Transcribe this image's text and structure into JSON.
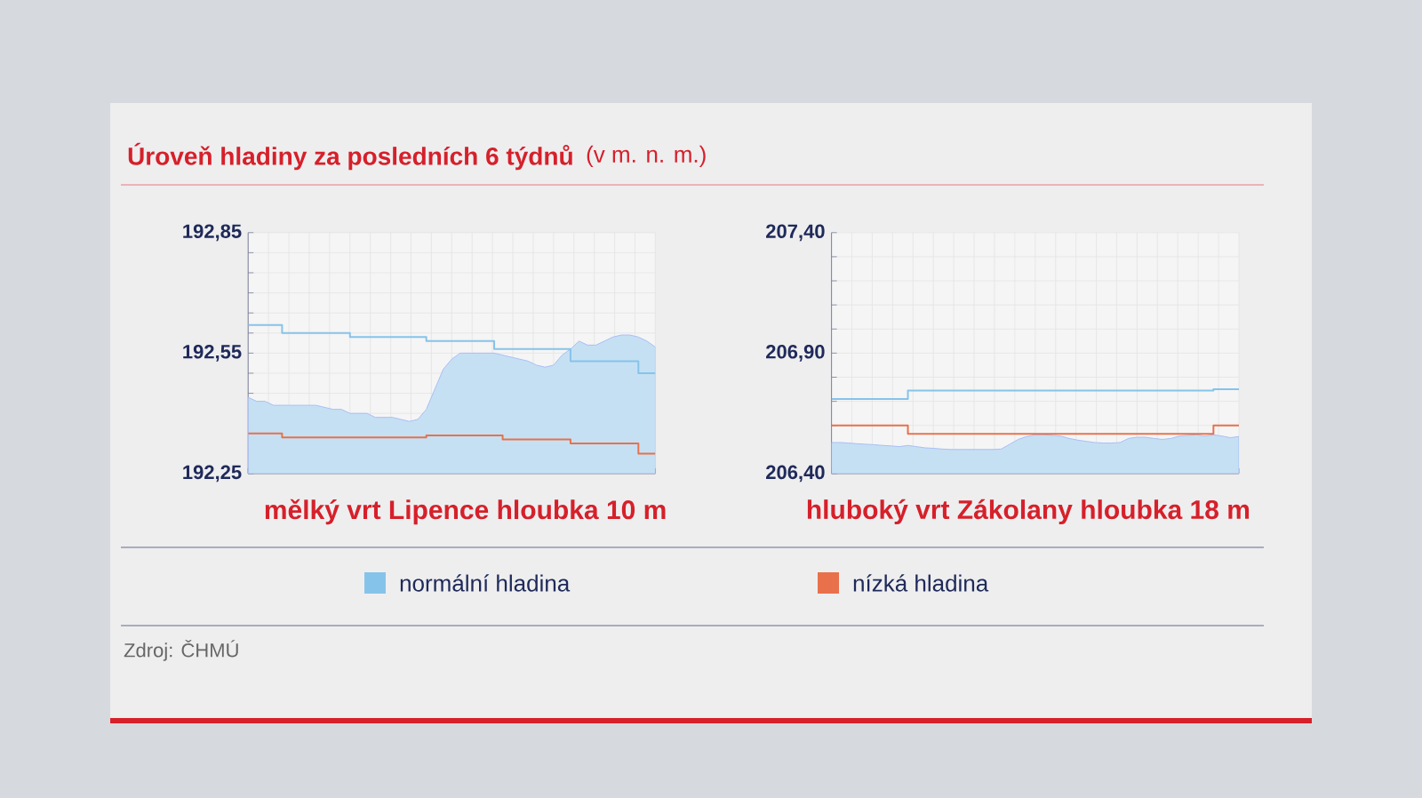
{
  "chart_data": [
    {
      "type": "area",
      "title": "Úroveň hladiny za posledních 6 týdnů",
      "subtitle": "(v m. n. m.)",
      "xlabel": "mělký vrt Lipence hloubka 10 m",
      "annotations": [
        "Zdroj: ČHMÚ"
      ],
      "categories": [
        null,
        null,
        null,
        null,
        null,
        null,
        null,
        null,
        null,
        null,
        null,
        null,
        null,
        null,
        null,
        null,
        null,
        null,
        null,
        null,
        null,
        null,
        null,
        null,
        null,
        null,
        null,
        null,
        null,
        null,
        null,
        null,
        null,
        null,
        null,
        null,
        null,
        null,
        null,
        null,
        null,
        null,
        null,
        null,
        null,
        null,
        null,
        null,
        null
      ],
      "ylim": [
        192.25,
        192.85
      ],
      "yticks": [
        {
          "value": 192.25,
          "label": "192,25"
        },
        {
          "value": 192.3,
          "label": null
        },
        {
          "value": 192.35,
          "label": null
        },
        {
          "value": 192.4,
          "label": null
        },
        {
          "value": 192.45,
          "label": null
        },
        {
          "value": 192.5,
          "label": null
        },
        {
          "value": 192.55,
          "label": "192,55"
        },
        {
          "value": 192.6,
          "label": null
        },
        {
          "value": 192.65,
          "label": null
        },
        {
          "value": 192.7,
          "label": null
        },
        {
          "value": 192.75,
          "label": null
        },
        {
          "value": 192.8,
          "label": null
        },
        {
          "value": 192.85,
          "label": "192,85"
        }
      ],
      "grid": true,
      "legend": "bottom",
      "tick_labels": "y",
      "series": [
        {
          "color": "#c6e0f3",
          "values": [
            192.44,
            192.43,
            192.43,
            192.42,
            192.42,
            192.42,
            192.42,
            192.42,
            192.42,
            192.415,
            192.41,
            192.41,
            192.4,
            192.4,
            192.4,
            192.39,
            192.39,
            192.39,
            192.385,
            192.38,
            192.385,
            192.41,
            192.46,
            192.51,
            192.535,
            192.55,
            192.55,
            192.55,
            192.55,
            192.55,
            192.545,
            192.54,
            192.535,
            192.53,
            192.52,
            192.515,
            192.52,
            192.545,
            192.56,
            192.58,
            192.57,
            192.57,
            192.58,
            192.59,
            192.595,
            192.595,
            192.59,
            192.58,
            192.565
          ]
        },
        {
          "type": "step",
          "name": "normální hladina",
          "color": "#86c3ea",
          "values": [
            192.62,
            192.62,
            192.62,
            192.62,
            192.6,
            192.6,
            192.6,
            192.6,
            192.6,
            192.6,
            192.6,
            192.6,
            192.59,
            192.59,
            192.59,
            192.59,
            192.59,
            192.59,
            192.59,
            192.59,
            192.59,
            192.58,
            192.58,
            192.58,
            192.58,
            192.58,
            192.58,
            192.58,
            192.58,
            192.56,
            192.56,
            192.56,
            192.56,
            192.56,
            192.56,
            192.56,
            192.56,
            192.56,
            192.53,
            192.53,
            192.53,
            192.53,
            192.53,
            192.53,
            192.53,
            192.53,
            192.5,
            192.5,
            192.5
          ]
        },
        {
          "type": "step",
          "name": "nízká hladina",
          "color": "#e8714c",
          "values": [
            192.35,
            192.35,
            192.35,
            192.35,
            192.34,
            192.34,
            192.34,
            192.34,
            192.34,
            192.34,
            192.34,
            192.34,
            192.34,
            192.34,
            192.34,
            192.34,
            192.34,
            192.34,
            192.34,
            192.34,
            192.34,
            192.345,
            192.345,
            192.345,
            192.345,
            192.345,
            192.345,
            192.345,
            192.345,
            192.345,
            192.335,
            192.335,
            192.335,
            192.335,
            192.335,
            192.335,
            192.335,
            192.335,
            192.325,
            192.325,
            192.325,
            192.325,
            192.325,
            192.325,
            192.325,
            192.325,
            192.3,
            192.3,
            192.3
          ]
        }
      ]
    },
    {
      "type": "area",
      "xlabel": "hluboký vrt Zákolany hloubka 18 m",
      "categories": [
        null,
        null,
        null,
        null,
        null,
        null,
        null,
        null,
        null,
        null,
        null,
        null,
        null,
        null,
        null,
        null,
        null,
        null,
        null,
        null,
        null,
        null,
        null,
        null,
        null,
        null,
        null,
        null,
        null,
        null,
        null,
        null,
        null,
        null,
        null,
        null,
        null,
        null,
        null,
        null,
        null,
        null,
        null,
        null,
        null,
        null,
        null,
        null,
        null
      ],
      "ylim": [
        206.4,
        207.4
      ],
      "yticks": [
        {
          "value": 206.4,
          "label": "206,40"
        },
        {
          "value": 206.5,
          "label": null
        },
        {
          "value": 206.6,
          "label": null
        },
        {
          "value": 206.7,
          "label": null
        },
        {
          "value": 206.8,
          "label": null
        },
        {
          "value": 206.9,
          "label": "206,90"
        },
        {
          "value": 207.0,
          "label": null
        },
        {
          "value": 207.1,
          "label": null
        },
        {
          "value": 207.2,
          "label": null
        },
        {
          "value": 207.3,
          "label": null
        },
        {
          "value": 207.4,
          "label": "207,40"
        }
      ],
      "grid": true,
      "tick_labels": "y",
      "series": [
        {
          "color": "#c6e0f3",
          "values": [
            206.529,
            206.529,
            206.527,
            206.524,
            206.522,
            206.52,
            206.517,
            206.515,
            206.512,
            206.517,
            206.512,
            206.507,
            206.505,
            206.502,
            206.5,
            206.5,
            206.5,
            206.5,
            206.5,
            206.5,
            206.502,
            206.522,
            206.542,
            206.554,
            206.561,
            206.561,
            206.559,
            206.556,
            206.546,
            206.539,
            206.534,
            206.529,
            206.527,
            206.527,
            206.529,
            206.546,
            206.551,
            206.551,
            206.546,
            206.542,
            206.546,
            206.556,
            206.559,
            206.561,
            206.556,
            206.561,
            206.556,
            206.549,
            206.554
          ]
        },
        {
          "type": "step",
          "color": "#86c3ea",
          "values": [
            206.71,
            206.71,
            206.71,
            206.71,
            206.71,
            206.71,
            206.71,
            206.71,
            206.71,
            206.745,
            206.745,
            206.745,
            206.745,
            206.745,
            206.745,
            206.745,
            206.745,
            206.745,
            206.745,
            206.745,
            206.745,
            206.745,
            206.745,
            206.745,
            206.745,
            206.745,
            206.745,
            206.745,
            206.745,
            206.745,
            206.745,
            206.745,
            206.745,
            206.745,
            206.745,
            206.745,
            206.745,
            206.745,
            206.745,
            206.745,
            206.745,
            206.745,
            206.745,
            206.745,
            206.745,
            206.75,
            206.75,
            206.75,
            206.75
          ]
        },
        {
          "type": "step",
          "color": "#e8714c",
          "values": [
            206.6,
            206.6,
            206.6,
            206.6,
            206.6,
            206.6,
            206.6,
            206.6,
            206.6,
            206.565,
            206.565,
            206.565,
            206.565,
            206.565,
            206.565,
            206.565,
            206.565,
            206.565,
            206.565,
            206.565,
            206.565,
            206.565,
            206.565,
            206.565,
            206.565,
            206.565,
            206.565,
            206.565,
            206.565,
            206.565,
            206.565,
            206.565,
            206.565,
            206.565,
            206.565,
            206.565,
            206.565,
            206.565,
            206.565,
            206.565,
            206.565,
            206.565,
            206.565,
            206.565,
            206.565,
            206.6,
            206.6,
            206.6,
            206.6
          ]
        }
      ]
    }
  ]
}
